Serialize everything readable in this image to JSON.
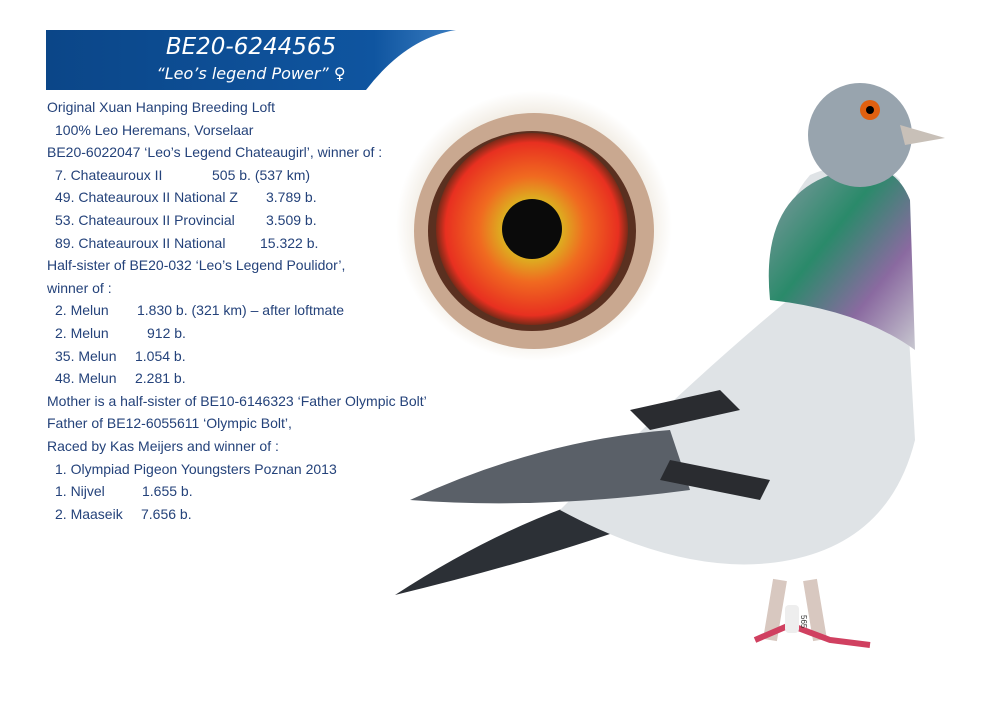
{
  "header": {
    "ring_number": "BE20-6244565",
    "name": "“Leo’s legend Power”",
    "sex_symbol": "♀"
  },
  "info_lines": [
    {
      "text": "Original Xuan Hanping Breeding Loft"
    },
    {
      "text": "100% Leo Heremans, Vorselaar"
    },
    {
      "text": "BE20-6022047 ‘Leo’s Legend Chateaugirl’, winner of :"
    },
    {
      "text": "7. Chateauroux II",
      "value": "505 b. (537 km)"
    },
    {
      "text": "49. Chateauroux II National Z",
      "value": "3.789 b."
    },
    {
      "text": "53. Chateauroux II Provincial",
      "value": "3.509 b."
    },
    {
      "text": "89. Chateauroux II National",
      "value": "15.322 b."
    },
    {
      "text": "Half-sister of BE20-032 ‘Leo’s Legend Poulidor’,"
    },
    {
      "text": "winner of :"
    },
    {
      "text": "2. Melun",
      "value": "1.830 b. (321 km) – after loftmate"
    },
    {
      "text": "2. Melun",
      "value": "912 b."
    },
    {
      "text": "35. Melun",
      "value": "1.054 b."
    },
    {
      "text": "48. Melun",
      "value": "2.281 b."
    },
    {
      "text": "Mother is a half-sister of BE10-6146323 ‘Father Olympic Bolt’"
    },
    {
      "text": "Father of BE12-6055611 ‘Olympic Bolt’,"
    },
    {
      "text": "Raced by Kas Meijers and winner of :"
    },
    {
      "text": "1. Olympiad Pigeon Youngsters Poznan 2013"
    },
    {
      "text": "1. Nijvel",
      "value": "1.655 b."
    },
    {
      "text": "2. Maaseik",
      "value": "7.656 b."
    }
  ],
  "leg_ring_text": "565",
  "colors": {
    "banner": "#0d4a8f",
    "text": "#24427a"
  }
}
